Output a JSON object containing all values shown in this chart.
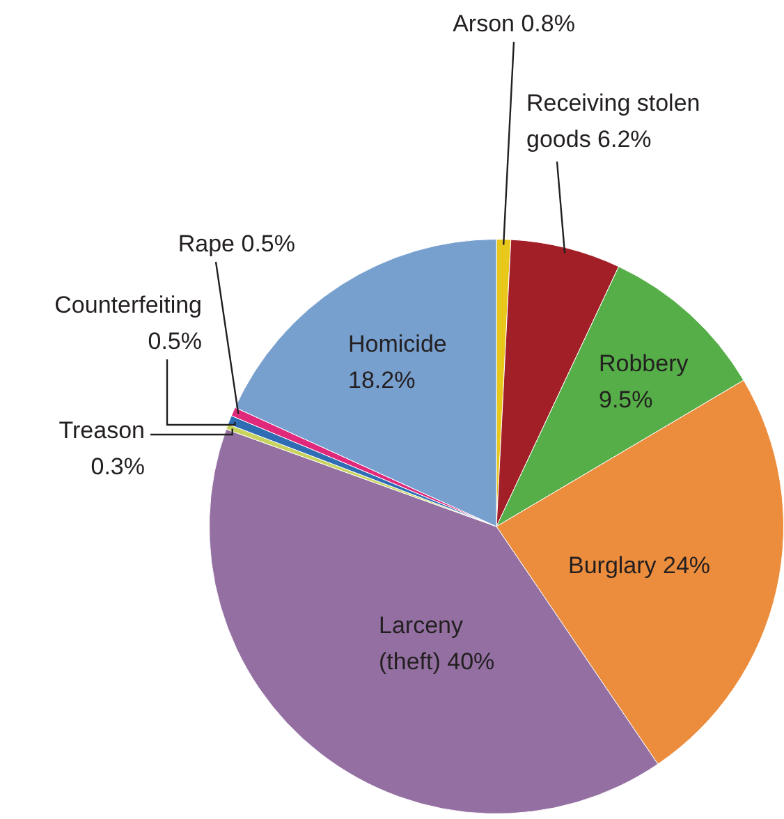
{
  "chart_data": {
    "type": "pie",
    "categories": [
      "Arson",
      "Receiving stolen goods",
      "Robbery",
      "Burglary",
      "Larceny (theft)",
      "Treason",
      "Counterfeiting",
      "Rape",
      "Homicide"
    ],
    "values": [
      0.8,
      6.2,
      9.5,
      24,
      40,
      0.3,
      0.5,
      0.5,
      18.2
    ],
    "colors": [
      "#e9c81c",
      "#a31f27",
      "#55ae47",
      "#ec8d3d",
      "#9470a2",
      "#c7d35c",
      "#2e6db4",
      "#e0297b",
      "#77a0cf"
    ],
    "value_labels": [
      "0.8%",
      "6.2%",
      "9.5%",
      "24%",
      "40%",
      "0.3%",
      "0.5%",
      "0.5%",
      "18.2%"
    ],
    "legend": false
  }
}
